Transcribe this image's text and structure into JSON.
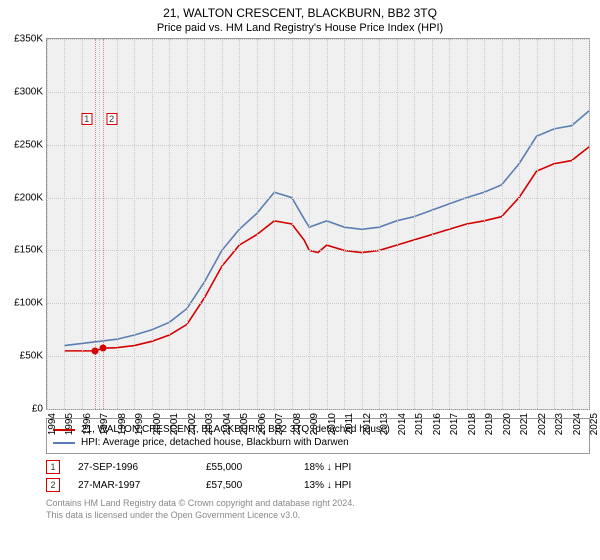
{
  "title": "21, WALTON CRESCENT, BLACKBURN, BB2 3TQ",
  "subtitle": "Price paid vs. HM Land Registry's House Price Index (HPI)",
  "chart": {
    "type": "line",
    "background_color": "#f0f0f0",
    "grid_color": "#c9c9c9",
    "border_color": "#999999",
    "y": {
      "min": 0,
      "max": 350,
      "ticks": [
        0,
        50,
        100,
        150,
        200,
        250,
        300,
        350
      ],
      "labels": [
        "£0",
        "£50K",
        "£100K",
        "£150K",
        "£200K",
        "£250K",
        "£300K",
        "£350K"
      ],
      "label_fontsize": 10
    },
    "x": {
      "min": 1994,
      "max": 2025,
      "ticks": [
        1994,
        1995,
        1996,
        1997,
        1998,
        1999,
        2000,
        2001,
        2002,
        2003,
        2004,
        2005,
        2006,
        2007,
        2008,
        2009,
        2010,
        2011,
        2012,
        2013,
        2014,
        2015,
        2016,
        2017,
        2018,
        2019,
        2020,
        2021,
        2022,
        2023,
        2024,
        2025
      ],
      "label_fontsize": 10,
      "label_rotation": -90
    },
    "series": [
      {
        "name": "21, WALTON CRESCENT, BLACKBURN, BB2 3TQ (detached house)",
        "color": "#d40000",
        "line_width": 1.6,
        "points": [
          [
            1995.0,
            55
          ],
          [
            1996.0,
            55
          ],
          [
            1996.7,
            55
          ],
          [
            1997.2,
            57.5
          ],
          [
            1998,
            58
          ],
          [
            1999,
            60
          ],
          [
            2000,
            64
          ],
          [
            2001,
            70
          ],
          [
            2002,
            80
          ],
          [
            2003,
            105
          ],
          [
            2004,
            135
          ],
          [
            2005,
            155
          ],
          [
            2006,
            165
          ],
          [
            2007,
            178
          ],
          [
            2008,
            175
          ],
          [
            2008.7,
            160
          ],
          [
            2009,
            150
          ],
          [
            2009.5,
            148
          ],
          [
            2010,
            155
          ],
          [
            2011,
            150
          ],
          [
            2012,
            148
          ],
          [
            2013,
            150
          ],
          [
            2014,
            155
          ],
          [
            2015,
            160
          ],
          [
            2016,
            165
          ],
          [
            2017,
            170
          ],
          [
            2018,
            175
          ],
          [
            2019,
            178
          ],
          [
            2020,
            182
          ],
          [
            2021,
            200
          ],
          [
            2022,
            225
          ],
          [
            2023,
            232
          ],
          [
            2024,
            235
          ],
          [
            2025,
            248
          ]
        ]
      },
      {
        "name": "HPI: Average price, detached house, Blackburn with Darwen",
        "color": "#5b7fb4",
        "line_width": 1.6,
        "points": [
          [
            1995.0,
            60
          ],
          [
            1996.0,
            62
          ],
          [
            1997,
            64
          ],
          [
            1998,
            66
          ],
          [
            1999,
            70
          ],
          [
            2000,
            75
          ],
          [
            2001,
            82
          ],
          [
            2002,
            95
          ],
          [
            2003,
            120
          ],
          [
            2004,
            150
          ],
          [
            2005,
            170
          ],
          [
            2006,
            185
          ],
          [
            2007,
            205
          ],
          [
            2008,
            200
          ],
          [
            2008.7,
            180
          ],
          [
            2009,
            172
          ],
          [
            2010,
            178
          ],
          [
            2011,
            172
          ],
          [
            2012,
            170
          ],
          [
            2013,
            172
          ],
          [
            2014,
            178
          ],
          [
            2015,
            182
          ],
          [
            2016,
            188
          ],
          [
            2017,
            194
          ],
          [
            2018,
            200
          ],
          [
            2019,
            205
          ],
          [
            2020,
            212
          ],
          [
            2021,
            232
          ],
          [
            2022,
            258
          ],
          [
            2023,
            265
          ],
          [
            2024,
            268
          ],
          [
            2025,
            282
          ]
        ]
      }
    ],
    "markers": [
      {
        "label": "1",
        "x": 1996.74,
        "y": 55
      },
      {
        "label": "2",
        "x": 1997.23,
        "y": 57.5
      }
    ],
    "marker_color": "#d40000",
    "marker_label_border": "#d40000"
  },
  "legend": {
    "items": [
      {
        "color": "#d40000",
        "label": "21, WALTON CRESCENT, BLACKBURN, BB2 3TQ (detached house)"
      },
      {
        "color": "#5b7fb4",
        "label": "HPI: Average price, detached house, Blackburn with Darwen"
      }
    ]
  },
  "data_rows": [
    {
      "n": "1",
      "date": "27-SEP-1996",
      "price": "£55,000",
      "delta": "18% ↓ HPI"
    },
    {
      "n": "2",
      "date": "27-MAR-1997",
      "price": "£57,500",
      "delta": "13% ↓ HPI"
    }
  ],
  "credits": [
    "Contains HM Land Registry data © Crown copyright and database right 2024.",
    "This data is licensed under the Open Government Licence v3.0."
  ]
}
